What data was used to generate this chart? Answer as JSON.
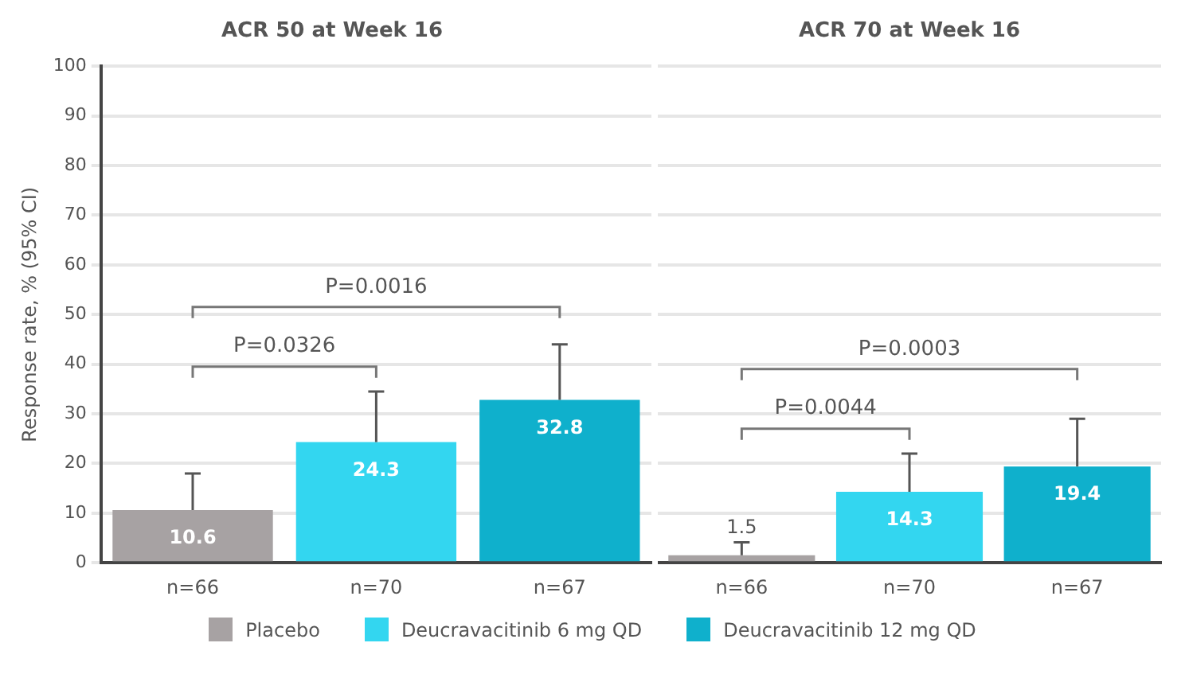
{
  "chart_data": [
    {
      "type": "bar",
      "title": "ACR 50 at Week 16",
      "ylabel": "Response rate, % (95% CI)",
      "categories": [
        "n=66",
        "n=70",
        "n=67"
      ],
      "series": [
        {
          "name": "Placebo",
          "color": "#a7a2a3",
          "values": [
            10.6,
            null,
            null
          ],
          "errors": [
            [
              10.6,
              18
            ],
            null,
            null
          ]
        },
        {
          "name": "Deucravacitinib 6 mg QD",
          "color": "#33d6f0",
          "values": [
            null,
            24.3,
            null
          ],
          "errors": [
            null,
            [
              24.3,
              34.5
            ],
            null
          ]
        },
        {
          "name": "Deucravacitinib 12 mg QD",
          "color": "#0fb0cc",
          "values": [
            null,
            null,
            32.8
          ],
          "errors": [
            null,
            null,
            [
              32.8,
              44
            ]
          ]
        }
      ],
      "ylim": [
        0,
        100
      ],
      "yticks": [
        0,
        10,
        20,
        30,
        40,
        50,
        60,
        70,
        80,
        90,
        100
      ],
      "grid": "y",
      "legend": "bottom",
      "data_labels": true,
      "annotations": [
        "P=0.0326",
        "P=0.0016"
      ]
    },
    {
      "type": "bar",
      "title": "ACR 70 at Week 16",
      "categories": [
        "n=66",
        "n=70",
        "n=67"
      ],
      "series": [
        {
          "color": "#a7a2a3",
          "values": [
            1.5,
            null,
            null
          ],
          "errors": [
            [
              1.5,
              4.1
            ],
            null,
            null
          ]
        },
        {
          "color": "#33d6f0",
          "values": [
            null,
            14.3,
            null
          ],
          "errors": [
            null,
            [
              14.3,
              22
            ],
            null
          ]
        },
        {
          "color": "#0fb0cc",
          "values": [
            null,
            null,
            19.4
          ],
          "errors": [
            null,
            null,
            [
              19.4,
              29
            ]
          ]
        }
      ],
      "ylim": [
        0,
        100
      ],
      "yticks": [
        0,
        10,
        20,
        30,
        40,
        50,
        60,
        70,
        80,
        90,
        100
      ],
      "grid": "y",
      "tick_labels": "x",
      "data_labels": true,
      "annotations": [
        "P=0.0044",
        "P=0.0003"
      ]
    }
  ]
}
